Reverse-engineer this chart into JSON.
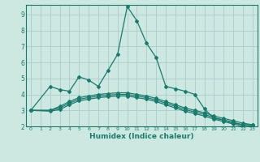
{
  "xlabel": "Humidex (Indice chaleur)",
  "background_color": "#cce8e0",
  "grid_color": "#aacccc",
  "line_color": "#1a7a6e",
  "xlim": [
    -0.5,
    23.5
  ],
  "ylim": [
    2,
    9.6
  ],
  "yticks": [
    2,
    3,
    4,
    5,
    6,
    7,
    8,
    9
  ],
  "xticks": [
    0,
    1,
    2,
    3,
    4,
    5,
    6,
    7,
    8,
    9,
    10,
    11,
    12,
    13,
    14,
    15,
    16,
    17,
    18,
    19,
    20,
    21,
    22,
    23
  ],
  "series": [
    {
      "x": [
        0,
        2,
        3,
        4,
        5,
        6,
        7,
        8,
        9,
        10,
        11,
        12,
        13,
        14,
        15,
        16,
        17,
        18,
        19,
        20,
        21,
        22,
        23
      ],
      "y": [
        3.0,
        4.5,
        4.3,
        4.2,
        5.1,
        4.9,
        4.5,
        5.5,
        6.5,
        9.5,
        8.6,
        7.2,
        6.3,
        4.5,
        4.35,
        4.2,
        4.0,
        3.1,
        2.5,
        2.4,
        2.2,
        2.1,
        2.1
      ]
    },
    {
      "x": [
        0,
        2,
        3,
        4,
        5,
        6,
        7,
        8,
        9,
        10,
        11,
        12,
        13,
        14,
        15,
        16,
        17,
        18,
        19,
        20,
        21,
        22,
        23
      ],
      "y": [
        3.0,
        3.0,
        3.25,
        3.55,
        3.8,
        3.9,
        4.0,
        4.05,
        4.1,
        4.1,
        4.0,
        3.9,
        3.75,
        3.55,
        3.35,
        3.15,
        3.0,
        2.85,
        2.65,
        2.5,
        2.35,
        2.2,
        2.1
      ]
    },
    {
      "x": [
        0,
        2,
        3,
        4,
        5,
        6,
        7,
        8,
        9,
        10,
        11,
        12,
        13,
        14,
        15,
        16,
        17,
        18,
        19,
        20,
        21,
        22,
        23
      ],
      "y": [
        3.0,
        3.0,
        3.15,
        3.45,
        3.7,
        3.8,
        3.9,
        3.95,
        4.0,
        4.0,
        3.9,
        3.8,
        3.65,
        3.45,
        3.25,
        3.05,
        2.9,
        2.75,
        2.55,
        2.4,
        2.25,
        2.1,
        2.0
      ]
    },
    {
      "x": [
        0,
        2,
        3,
        4,
        5,
        6,
        7,
        8,
        9,
        10,
        11,
        12,
        13,
        14,
        15,
        16,
        17,
        18,
        19,
        20,
        21,
        22,
        23
      ],
      "y": [
        3.0,
        2.95,
        3.05,
        3.35,
        3.6,
        3.7,
        3.8,
        3.85,
        3.9,
        3.9,
        3.8,
        3.7,
        3.55,
        3.35,
        3.15,
        2.95,
        2.8,
        2.65,
        2.45,
        2.3,
        2.15,
        2.0,
        1.95
      ]
    }
  ]
}
